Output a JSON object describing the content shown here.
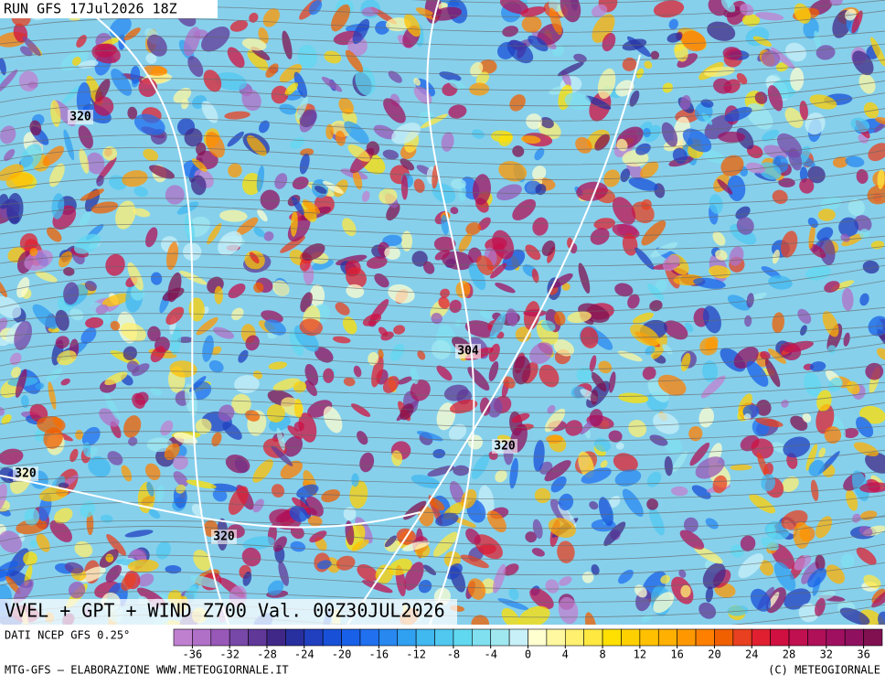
{
  "header": {
    "run": "RUN GFS 17Jul2026 18Z",
    "title": "VVEL + GPT + WIND Z700 Val. 00Z30JUL2026"
  },
  "contour_labels": [
    "320",
    "304",
    "320",
    "320",
    "320"
  ],
  "legend": {
    "source": "DATI NCEP GFS 0.25°",
    "range": [
      -38,
      38
    ],
    "ticks": [
      -36,
      -32,
      -28,
      -24,
      -20,
      -16,
      -12,
      -8,
      -4,
      0,
      4,
      8,
      12,
      16,
      20,
      24,
      28,
      32,
      36
    ],
    "colors": [
      "#c080d0",
      "#b070c8",
      "#9858b8",
      "#7848a8",
      "#603898",
      "#402888",
      "#2830a0",
      "#2040c0",
      "#1850d8",
      "#1860e8",
      "#2070f0",
      "#2888f0",
      "#30a0f0",
      "#40b8f0",
      "#50c8f0",
      "#60d8f0",
      "#80e0f0",
      "#a0e8f0",
      "#c8f0f8",
      "#ffffd0",
      "#fff8a0",
      "#fff070",
      "#ffe840",
      "#ffe000",
      "#ffd000",
      "#ffc000",
      "#ffb000",
      "#ff9800",
      "#ff8000",
      "#f06000",
      "#e84020",
      "#e02030",
      "#d01040",
      "#c01050",
      "#b01058",
      "#a01060",
      "#901060",
      "#801050"
    ]
  },
  "footer": {
    "left": "MTG-GFS — ELABORAZIONE WWW.METEOGIORNALE.IT",
    "right": "(C) METEOGIORNALE"
  }
}
